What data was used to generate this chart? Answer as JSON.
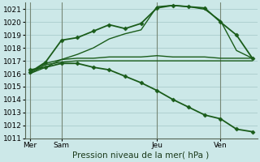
{
  "background_color": "#cce8e8",
  "grid_color": "#aacccc",
  "line_color": "#1a5c1a",
  "xlabel_text": "Pression niveau de la mer( hPa )",
  "x_tick_labels": [
    "Mer",
    "Sam",
    "Jeu",
    "Ven"
  ],
  "x_tick_positions": [
    0,
    2,
    8,
    12
  ],
  "ylim": [
    1011,
    1021.5
  ],
  "yticks": [
    1011,
    1012,
    1013,
    1014,
    1015,
    1016,
    1017,
    1018,
    1019,
    1020,
    1021
  ],
  "xlim": [
    -0.3,
    14.3
  ],
  "series": [
    {
      "x": [
        0,
        1,
        2,
        3,
        4,
        5,
        6,
        7,
        8,
        9,
        10,
        11,
        12,
        13,
        14
      ],
      "y": [
        1016.0,
        1016.7,
        1016.9,
        1017.0,
        1017.0,
        1017.0,
        1017.0,
        1017.0,
        1017.0,
        1017.0,
        1017.0,
        1017.0,
        1017.0,
        1017.0,
        1017.0
      ],
      "marker": null,
      "linewidth": 1.0
    },
    {
      "x": [
        0,
        1,
        2,
        3,
        4,
        5,
        6,
        7,
        8,
        9,
        10,
        11,
        12,
        13,
        14
      ],
      "y": [
        1016.1,
        1016.8,
        1017.1,
        1017.2,
        1017.2,
        1017.3,
        1017.3,
        1017.3,
        1017.4,
        1017.3,
        1017.3,
        1017.3,
        1017.2,
        1017.2,
        1017.2
      ],
      "marker": null,
      "linewidth": 1.0
    },
    {
      "x": [
        0,
        1,
        2,
        3,
        4,
        5,
        6,
        7,
        8,
        9,
        10,
        11,
        12,
        13,
        14
      ],
      "y": [
        1016.1,
        1016.9,
        1018.6,
        1018.8,
        1019.3,
        1019.8,
        1019.5,
        1019.9,
        1021.1,
        1021.3,
        1021.2,
        1021.1,
        1020.0,
        1019.0,
        1017.2
      ],
      "marker": "D",
      "markersize": 2.5,
      "linewidth": 1.3
    },
    {
      "x": [
        0,
        1,
        2,
        3,
        4,
        5,
        6,
        7,
        8,
        9,
        10,
        11,
        12,
        13,
        14
      ],
      "y": [
        1016.0,
        1016.5,
        1017.1,
        1017.5,
        1018.0,
        1018.7,
        1019.1,
        1019.4,
        1021.2,
        1021.3,
        1021.2,
        1021.0,
        1020.1,
        1017.8,
        1017.2
      ],
      "marker": null,
      "linewidth": 1.0
    },
    {
      "x": [
        0,
        1,
        2,
        3,
        4,
        5,
        6,
        7,
        8,
        9,
        10,
        11,
        12,
        13,
        14
      ],
      "y": [
        1016.3,
        1016.5,
        1016.8,
        1016.8,
        1016.5,
        1016.3,
        1015.8,
        1015.3,
        1014.7,
        1014.0,
        1013.4,
        1012.8,
        1012.5,
        1011.7,
        1011.5
      ],
      "marker": "D",
      "markersize": 2.5,
      "linewidth": 1.3
    }
  ],
  "vlines": [
    0,
    2,
    8,
    12
  ],
  "tick_fontsize": 6.5,
  "label_fontsize": 7.5
}
